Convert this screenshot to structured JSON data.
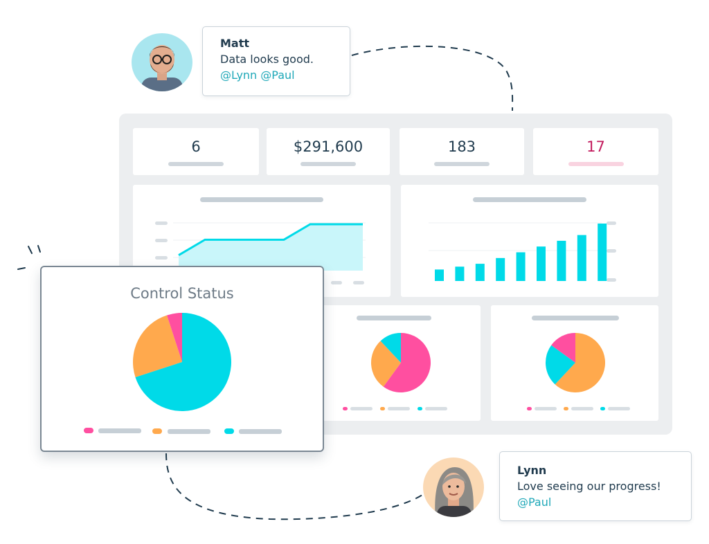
{
  "kpis": [
    {
      "value": "6",
      "color": "#1f3a4d",
      "bar_color": "#cfd6dc"
    },
    {
      "value": "$291,600",
      "color": "#1f3a4d",
      "bar_color": "#cfd6dc"
    },
    {
      "value": "183",
      "color": "#1f3a4d",
      "bar_color": "#cfd6dc"
    },
    {
      "value": "17",
      "color": "#c2185b",
      "bar_color": "#f9d3e0"
    }
  ],
  "control_status": {
    "title": "Control Status",
    "slices": [
      {
        "label": "cyan",
        "value": 0.7,
        "color": "#00dae8"
      },
      {
        "label": "orange",
        "value": 0.25,
        "color": "#ffa94d"
      },
      {
        "label": "pink",
        "value": 0.05,
        "color": "#ff4fa0"
      }
    ]
  },
  "comments": [
    {
      "author": "Matt",
      "message": "Data looks good.",
      "mentions": "@Lynn @Paul"
    },
    {
      "author": "Lynn",
      "message": "Love seeing our progress!",
      "mentions": "@Paul"
    }
  ],
  "colors": {
    "cyan": "#00dae8",
    "orange": "#ffa94d",
    "pink": "#ff4fa0",
    "text": "#1f3a4d",
    "mention": "#1fa8b8"
  },
  "chart_data": [
    {
      "type": "area",
      "values": [
        1,
        2,
        2,
        2,
        2,
        3,
        3,
        3
      ]
    },
    {
      "type": "bar",
      "values": [
        2,
        2.5,
        3,
        4,
        5,
        6,
        7,
        8,
        10
      ]
    },
    {
      "type": "pie",
      "values": [
        0.7,
        0.25,
        0.05
      ],
      "colors": [
        "#00dae8",
        "#ffa94d",
        "#ff4fa0"
      ]
    },
    {
      "type": "pie",
      "values": [
        0.6,
        0.28,
        0.12
      ],
      "colors": [
        "#ff4fa0",
        "#ffa94d",
        "#00dae8"
      ]
    },
    {
      "type": "pie",
      "values": [
        0.62,
        0.23,
        0.15
      ],
      "colors": [
        "#ffa94d",
        "#00dae8",
        "#ff4fa0"
      ]
    }
  ]
}
